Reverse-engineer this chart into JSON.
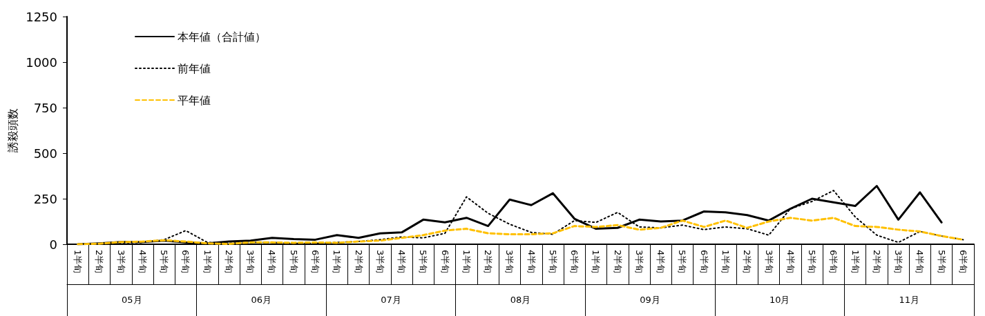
{
  "chart_data": {
    "type": "line",
    "ylabel": "誘殺頭数",
    "categories": [
      "1半旬",
      "2半旬",
      "3半旬",
      "4半旬",
      "5半旬",
      "6半旬",
      "1半旬",
      "2半旬",
      "3半旬",
      "4半旬",
      "5半旬",
      "6半旬",
      "1半旬",
      "2半旬",
      "3半旬",
      "4半旬",
      "5半旬",
      "6半旬",
      "1半旬",
      "2半旬",
      "3半旬",
      "4半旬",
      "5半旬",
      "6半旬",
      "1半旬",
      "2半旬",
      "3半旬",
      "4半旬",
      "5半旬",
      "6半旬",
      "1半旬",
      "2半旬",
      "3半旬",
      "4半旬",
      "5半旬",
      "6半旬",
      "1半旬",
      "2半旬",
      "3半旬",
      "4半旬",
      "5半旬",
      "6半旬"
    ],
    "annotations": [
      "05月",
      "06月",
      "07月",
      "08月",
      "09月",
      "10月",
      "11月"
    ],
    "series": [
      {
        "name": "本年値（合計値）",
        "color": "#000000",
        "line_style": "solid",
        "values": [
          0,
          5,
          12,
          12,
          20,
          10,
          5,
          15,
          20,
          35,
          28,
          25,
          50,
          35,
          60,
          65,
          135,
          120,
          145,
          100,
          245,
          215,
          280,
          140,
          85,
          90,
          135,
          125,
          130,
          180,
          175,
          160,
          130,
          195,
          250,
          230,
          210,
          320,
          135,
          285,
          120,
          null
        ]
      },
      {
        "name": "前年値",
        "color": "#000000",
        "line_style": "dotted",
        "values": [
          0,
          2,
          8,
          10,
          25,
          75,
          10,
          5,
          10,
          10,
          5,
          5,
          10,
          15,
          25,
          40,
          35,
          60,
          260,
          170,
          110,
          65,
          55,
          130,
          120,
          175,
          95,
          90,
          105,
          80,
          95,
          85,
          50,
          195,
          235,
          295,
          150,
          50,
          10,
          70,
          45,
          25
        ]
      },
      {
        "name": "平年値",
        "color": "#ffc000",
        "line_style": "dashed",
        "values": [
          0,
          3,
          12,
          15,
          22,
          15,
          5,
          2,
          10,
          10,
          8,
          10,
          8,
          15,
          20,
          35,
          50,
          75,
          85,
          60,
          55,
          55,
          60,
          100,
          95,
          105,
          80,
          90,
          130,
          95,
          130,
          90,
          125,
          145,
          130,
          145,
          100,
          95,
          80,
          70,
          45,
          25
        ]
      }
    ],
    "ylim": [
      0,
      1250
    ],
    "yticks": [
      0,
      250,
      500,
      750,
      1000,
      1250
    ],
    "grid": false,
    "legend": "top left",
    "marker": "none"
  }
}
